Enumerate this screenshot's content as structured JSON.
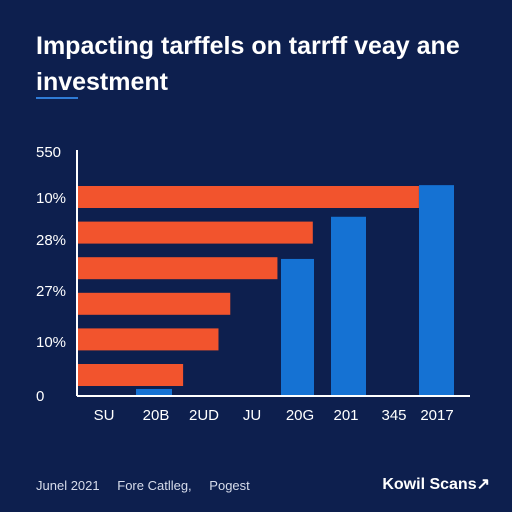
{
  "chart_data": {
    "type": "bar",
    "title": "Impacting tarffels on tarrff veay ane investment",
    "x_tick_labels": [
      "SU",
      "20B",
      "2UD",
      "JU",
      "20G",
      "201",
      "345",
      "2017"
    ],
    "y_tick_labels": [
      "550",
      "10%",
      "28%",
      "27%",
      "10%",
      "0"
    ],
    "horizontal_series": {
      "values": [
        87,
        60,
        51,
        39,
        36,
        27
      ],
      "xlim": [
        0,
        100
      ]
    },
    "vertical_series": {
      "categories": [
        "20B",
        "20G",
        "201",
        "2017"
      ],
      "values": [
        0.2,
        3.9,
        5.1,
        6.0
      ],
      "ylim": [
        0,
        7
      ]
    },
    "grid": false,
    "legend": "none"
  },
  "footer": {
    "date": "Junel 2021",
    "source1": "Fore Catlleg,",
    "source2": "Pogest"
  },
  "brand": "Kowil Scans",
  "colors": {
    "background": "#0d1f4e",
    "orange": "#f2542d",
    "blue": "#1572d3",
    "rule": "#2f7bd6"
  }
}
